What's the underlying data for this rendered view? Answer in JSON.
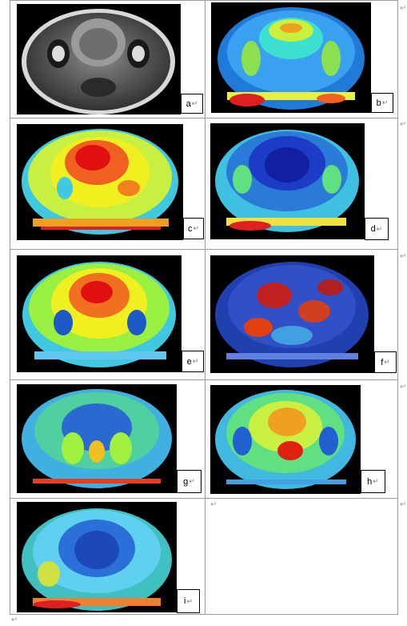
{
  "figure": {
    "panels": [
      {
        "label": "a",
        "mark": "↵"
      },
      {
        "label": "b",
        "mark": "↵"
      },
      {
        "label": "c",
        "mark": "↵"
      },
      {
        "label": "d",
        "mark": "↵"
      },
      {
        "label": "e",
        "mark": "↵"
      },
      {
        "label": "f",
        "mark": "↵"
      },
      {
        "label": "g",
        "mark": "↵"
      },
      {
        "label": "h",
        "mark": "↵"
      },
      {
        "label": "i",
        "mark": "↵"
      }
    ],
    "cell_end_mark": "↵",
    "para_mark": "↵"
  }
}
